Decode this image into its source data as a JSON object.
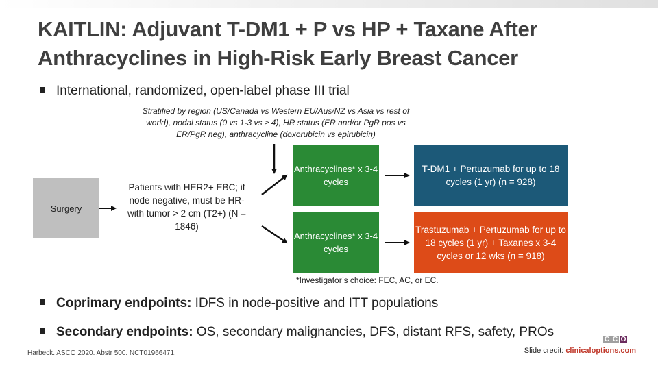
{
  "title": "KAITLIN: Adjuvant T-DM1 + P vs HP + Taxane After Anthracyclines in High-Risk Early Breast Cancer",
  "design_bullet": "International, randomized, open-label phase III trial",
  "stratification": "Stratified by region (US/Canada vs Western EU/Aus/NZ vs Asia vs rest of world), nodal status (0 vs 1-3 vs ≥ 4), HR status (ER and/or PgR pos vs ER/PgR neg), anthracycline (doxorubicin vs epirubicin)",
  "flow": {
    "surgery": "Surgery",
    "patients": "Patients with HER2+ EBC; if node negative, must be HR- with tumor > 2 cm (T2+) (N = 1846)",
    "arm1_chemo": "Anthracyclines* x 3-4 cycles",
    "arm2_chemo": "Anthracyclines* x 3-4 cycles",
    "arm1_treatment": "T-DM1 + Pertuzumab for up to 18 cycles (1 yr) (n = 928)",
    "arm2_treatment": "Trastuzumab + Pertuzumab for up to 18 cycles (1 yr) + Taxanes x 3-4 cycles or 12 wks (n = 918)"
  },
  "footnote": "*Investigator’s choice: FEC, AC, or EC.",
  "coprimary": {
    "label": "Coprimary endpoints:",
    "text": " IDFS in node-positive and ITT populations"
  },
  "secondary": {
    "label": "Secondary endpoints:",
    "text": " OS, secondary malignancies, DFS, distant RFS, safety, PROs"
  },
  "citation": "Harbeck. ASCO 2020. Abstr 500. NCT01966471.",
  "credit": {
    "label": "Slide credit: ",
    "link": "clinicaloptions.com"
  },
  "logo": {
    "letters": [
      "C",
      "C",
      "O"
    ],
    "colors": {
      "grey": "#a0a0a0",
      "purple": "#6b2b5e"
    }
  },
  "colors": {
    "green": "#2a8a35",
    "blue": "#1c5978",
    "orange": "#dd4b18",
    "grey_box": "#bfbfbf"
  }
}
